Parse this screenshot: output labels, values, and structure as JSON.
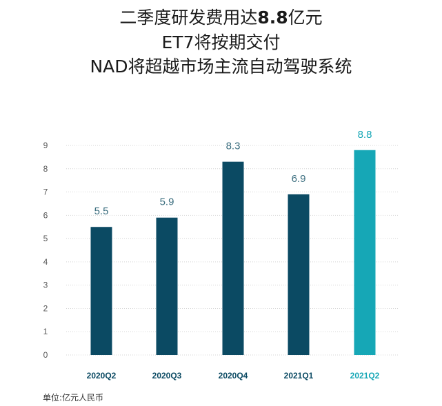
{
  "title": {
    "line1_prefix": "二季度研发费用达",
    "line1_bold": "8.8",
    "line1_suffix": "亿元",
    "line2": "ET7将按期交付",
    "line3": "NAD将超越市场主流自动驾驶系统"
  },
  "chart_data": {
    "type": "bar",
    "categories": [
      "2020Q2",
      "2020Q3",
      "2020Q4",
      "2021Q1",
      "2021Q2"
    ],
    "values": [
      5.5,
      5.9,
      8.3,
      6.9,
      8.8
    ],
    "value_labels": [
      "5.5",
      "5.9",
      "8.3",
      "6.9",
      "8.8"
    ],
    "yticks": [
      0,
      1,
      2,
      3,
      4,
      5,
      6,
      7,
      8,
      9
    ],
    "ylim": [
      0,
      9
    ],
    "grid": true,
    "highlight_index": 4,
    "colors": {
      "bar": "#0b4a63",
      "highlight": "#16a7b6",
      "value_label": "#3a6d7e",
      "highlight_label": "#16a7b6",
      "grid": "#d4d4d4",
      "tick": "#555555",
      "category": "#0b4a63"
    }
  },
  "footnote": "单位:亿元人民币"
}
